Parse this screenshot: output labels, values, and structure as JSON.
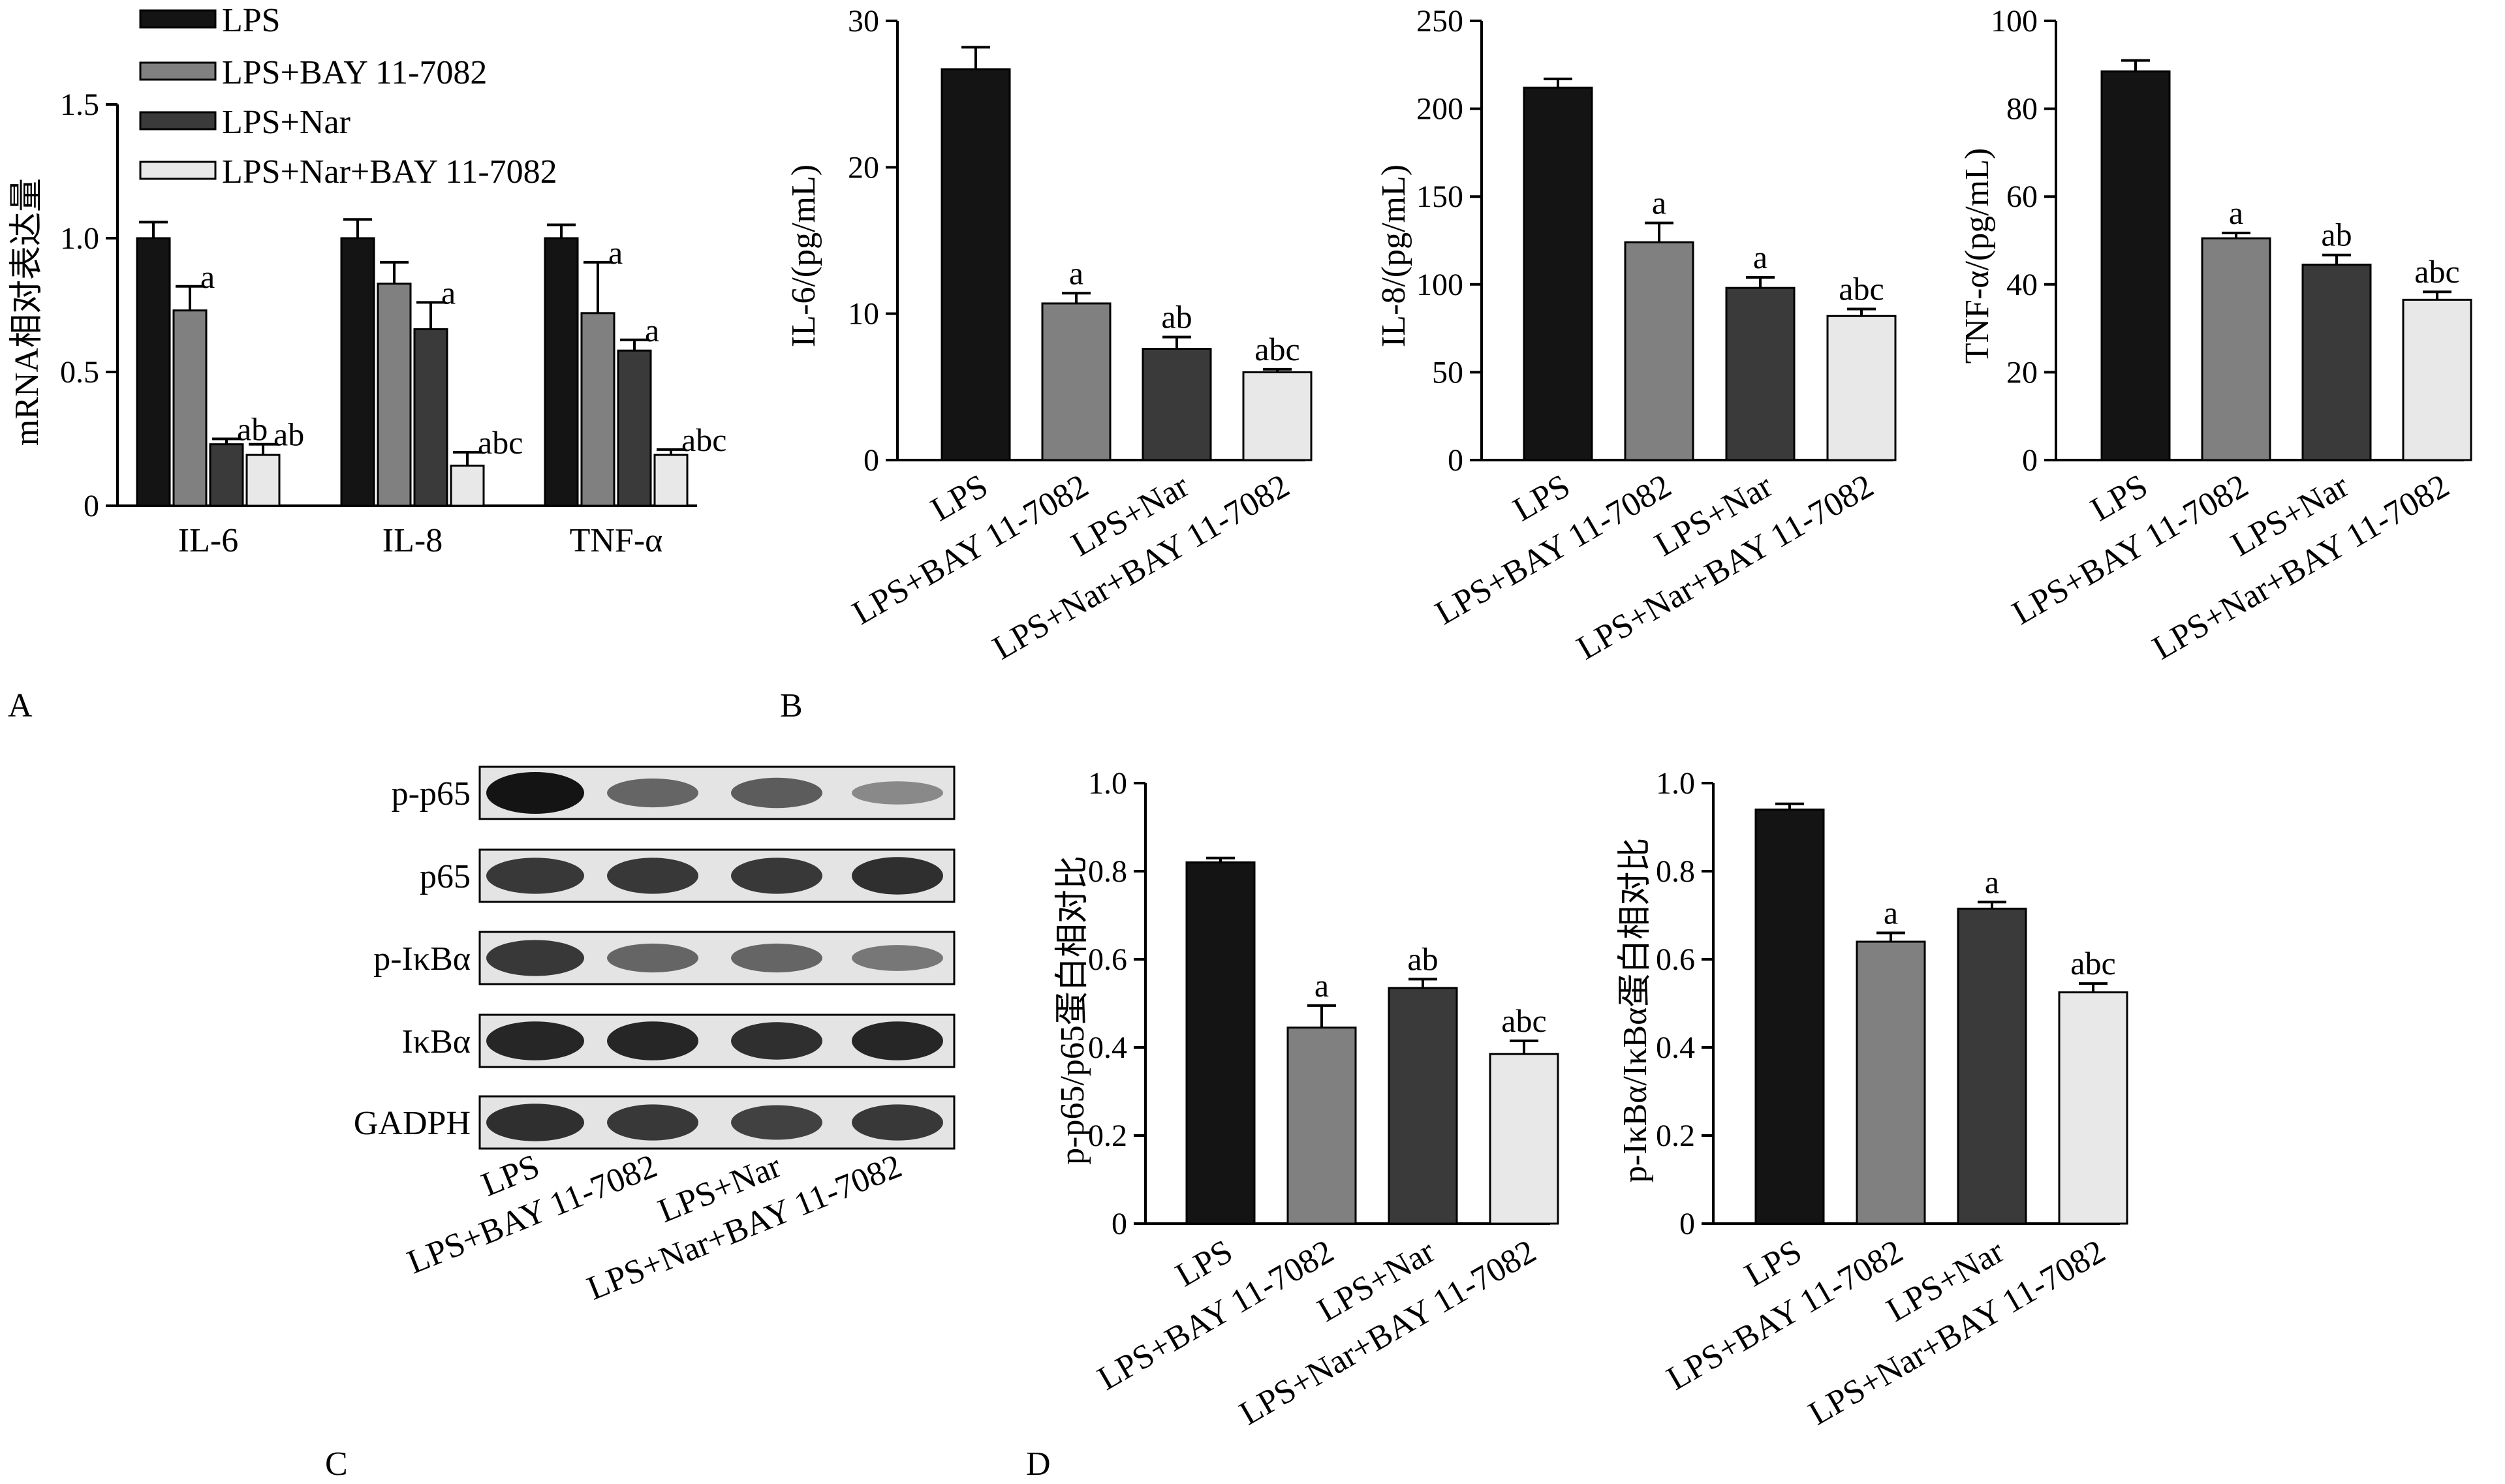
{
  "colors": [
    "#141414",
    "#808080",
    "#3a3a3a",
    "#e8e8e8"
  ],
  "groups": [
    "LPS",
    "LPS+BAY 11-7082",
    "LPS+Nar",
    "LPS+Nar+BAY 11-7082"
  ],
  "panel_labels": {
    "A": "A",
    "B": "B",
    "C": "C",
    "D": "D"
  },
  "chart_data": [
    {
      "panel": "A",
      "type": "bar",
      "categories": [
        "IL-6",
        "IL-8",
        "TNF-α"
      ],
      "series": [
        {
          "name": "LPS",
          "values": [
            1.0,
            1.0,
            1.0
          ],
          "errors": [
            0.06,
            0.07,
            0.05
          ],
          "sig": [
            "",
            "",
            ""
          ]
        },
        {
          "name": "LPS+BAY 11-7082",
          "values": [
            0.73,
            0.83,
            0.72
          ],
          "errors": [
            0.09,
            0.08,
            0.19
          ],
          "sig": [
            "a",
            "",
            "a"
          ]
        },
        {
          "name": "LPS+Nar",
          "values": [
            0.23,
            0.66,
            0.58
          ],
          "errors": [
            0.02,
            0.1,
            0.04
          ],
          "sig": [
            "ab",
            "a",
            "a"
          ]
        },
        {
          "name": "LPS+Nar+BAY 11-7082",
          "values": [
            0.19,
            0.15,
            0.19
          ],
          "errors": [
            0.04,
            0.05,
            0.02
          ],
          "sig": [
            "ab",
            "abc",
            "abc"
          ]
        }
      ],
      "ylabel": "mRNA相对表达量",
      "ylim": [
        0,
        1.5
      ],
      "yticks": [
        "0",
        "0.5",
        "1.0",
        "1.5"
      ],
      "legend": "top"
    },
    {
      "panel": "B",
      "type": "bar",
      "categories": [
        "LPS",
        "LPS+BAY 11-7082",
        "LPS+Nar",
        "LPS+Nar+BAY 11-7082"
      ],
      "values": [
        26.7,
        10.7,
        7.6,
        6.0
      ],
      "errors": [
        1.5,
        0.7,
        0.8,
        0.2
      ],
      "sig": [
        "",
        "a",
        "ab",
        "abc"
      ],
      "ylabel": "IL-6/(pg/mL)",
      "ylim": [
        0,
        30
      ],
      "yticks": [
        "0",
        "10",
        "20",
        "30"
      ]
    },
    {
      "panel": "B",
      "type": "bar",
      "categories": [
        "LPS",
        "LPS+BAY 11-7082",
        "LPS+Nar",
        "LPS+Nar+BAY 11-7082"
      ],
      "values": [
        212,
        124,
        98,
        82
      ],
      "errors": [
        5,
        11,
        6,
        4
      ],
      "sig": [
        "",
        "a",
        "a",
        "abc"
      ],
      "ylabel": "IL-8/(pg/mL)",
      "ylim": [
        0,
        250
      ],
      "yticks": [
        "0",
        "50",
        "100",
        "150",
        "200",
        "250"
      ]
    },
    {
      "panel": "B",
      "type": "bar",
      "categories": [
        "LPS",
        "LPS+BAY 11-7082",
        "LPS+Nar",
        "LPS+Nar+BAY 11-7082"
      ],
      "values": [
        88.5,
        50.5,
        44.5,
        36.5
      ],
      "errors": [
        2.5,
        1.2,
        2.2,
        1.8
      ],
      "sig": [
        "",
        "a",
        "ab",
        "abc"
      ],
      "ylabel": "TNF-α/(pg/mL)",
      "ylim": [
        0,
        100
      ],
      "yticks": [
        "0",
        "20",
        "40",
        "60",
        "80",
        "100"
      ]
    },
    {
      "panel": "D",
      "type": "bar",
      "categories": [
        "LPS",
        "LPS+BAY 11-7082",
        "LPS+Nar",
        "LPS+Nar+BAY 11-7082"
      ],
      "values": [
        0.82,
        0.445,
        0.535,
        0.385
      ],
      "errors": [
        0.01,
        0.05,
        0.02,
        0.03
      ],
      "sig": [
        "",
        "a",
        "ab",
        "abc"
      ],
      "ylabel": "p-p65/p65蛋白相对比",
      "ylim": [
        0,
        1.0
      ],
      "yticks": [
        "0",
        "0.2",
        "0.4",
        "0.6",
        "0.8",
        "1.0"
      ]
    },
    {
      "panel": "D",
      "type": "bar",
      "categories": [
        "LPS",
        "LPS+BAY 11-7082",
        "LPS+Nar",
        "LPS+Nar+BAY 11-7082"
      ],
      "values": [
        0.94,
        0.64,
        0.715,
        0.525
      ],
      "errors": [
        0.013,
        0.02,
        0.015,
        0.02
      ],
      "sig": [
        "",
        "a",
        "a",
        "abc"
      ],
      "ylabel": "p-IκBα/IκBα蛋白相对比",
      "ylim": [
        0,
        1.0
      ],
      "yticks": [
        "0",
        "0.2",
        "0.4",
        "0.6",
        "0.8",
        "1.0"
      ]
    }
  ],
  "western_blot": {
    "rows": [
      {
        "label": "p-p65",
        "intensity": [
          1.0,
          0.55,
          0.6,
          0.35
        ]
      },
      {
        "label": "p65",
        "intensity": [
          0.8,
          0.8,
          0.8,
          0.85
        ]
      },
      {
        "label": "p-IκBα",
        "intensity": [
          0.8,
          0.55,
          0.55,
          0.45
        ]
      },
      {
        "label": "IκBα",
        "intensity": [
          0.9,
          0.9,
          0.85,
          0.9
        ]
      },
      {
        "label": "GADPH",
        "intensity": [
          0.85,
          0.8,
          0.75,
          0.8
        ]
      }
    ],
    "lanes": [
      "LPS",
      "LPS+BAY 11-7082",
      "LPS+Nar",
      "LPS+Nar+BAY 11-7082"
    ]
  }
}
